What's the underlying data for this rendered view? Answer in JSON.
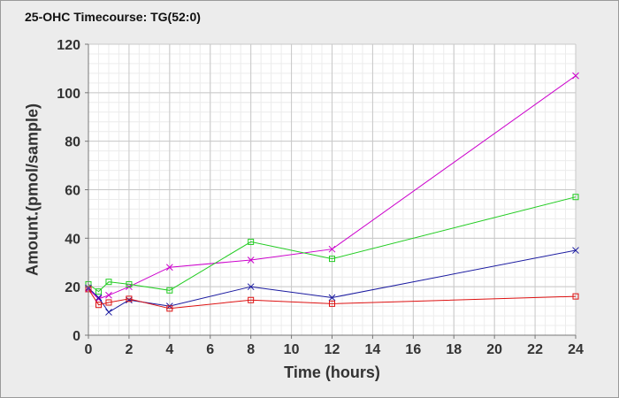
{
  "chart_data": {
    "type": "line",
    "title": "25-OHC Timecourse: TG(52:0)",
    "xlabel": "Time (hours)",
    "ylabel": "Amount.(pmol/sample)",
    "xlim": [
      0,
      24
    ],
    "ylim": [
      0,
      120
    ],
    "x_ticks": [
      0,
      2,
      4,
      6,
      8,
      10,
      12,
      14,
      16,
      18,
      20,
      22,
      24
    ],
    "y_ticks": [
      0,
      20,
      40,
      60,
      80,
      100,
      120
    ],
    "grid": true,
    "legend": "none",
    "series": [
      {
        "color": "#cc00cc",
        "marker": "x",
        "points": [
          [
            0,
            19
          ],
          [
            0.5,
            15
          ],
          [
            1,
            16.5
          ],
          [
            2,
            20
          ],
          [
            4,
            28
          ],
          [
            8,
            31
          ],
          [
            12,
            35.5
          ],
          [
            24,
            107
          ]
        ]
      },
      {
        "color": "#22cc22",
        "marker": "square",
        "points": [
          [
            0,
            21
          ],
          [
            0.5,
            18
          ],
          [
            1,
            22
          ],
          [
            2,
            21
          ],
          [
            4,
            18.5
          ],
          [
            8,
            38.5
          ],
          [
            12,
            31.5
          ],
          [
            24,
            57
          ]
        ]
      },
      {
        "color": "#1a1aa0",
        "marker": "x",
        "points": [
          [
            0,
            19.5
          ],
          [
            0.5,
            15.5
          ],
          [
            1,
            9.5
          ],
          [
            2,
            14.5
          ],
          [
            4,
            12
          ],
          [
            8,
            20
          ],
          [
            12,
            15.5
          ],
          [
            24,
            35
          ]
        ]
      },
      {
        "color": "#dd1111",
        "marker": "square",
        "points": [
          [
            0,
            19
          ],
          [
            0.5,
            12.5
          ],
          [
            1,
            13.5
          ],
          [
            2,
            15
          ],
          [
            4,
            11
          ],
          [
            8,
            14.5
          ],
          [
            12,
            13
          ],
          [
            24,
            16
          ]
        ]
      }
    ]
  }
}
